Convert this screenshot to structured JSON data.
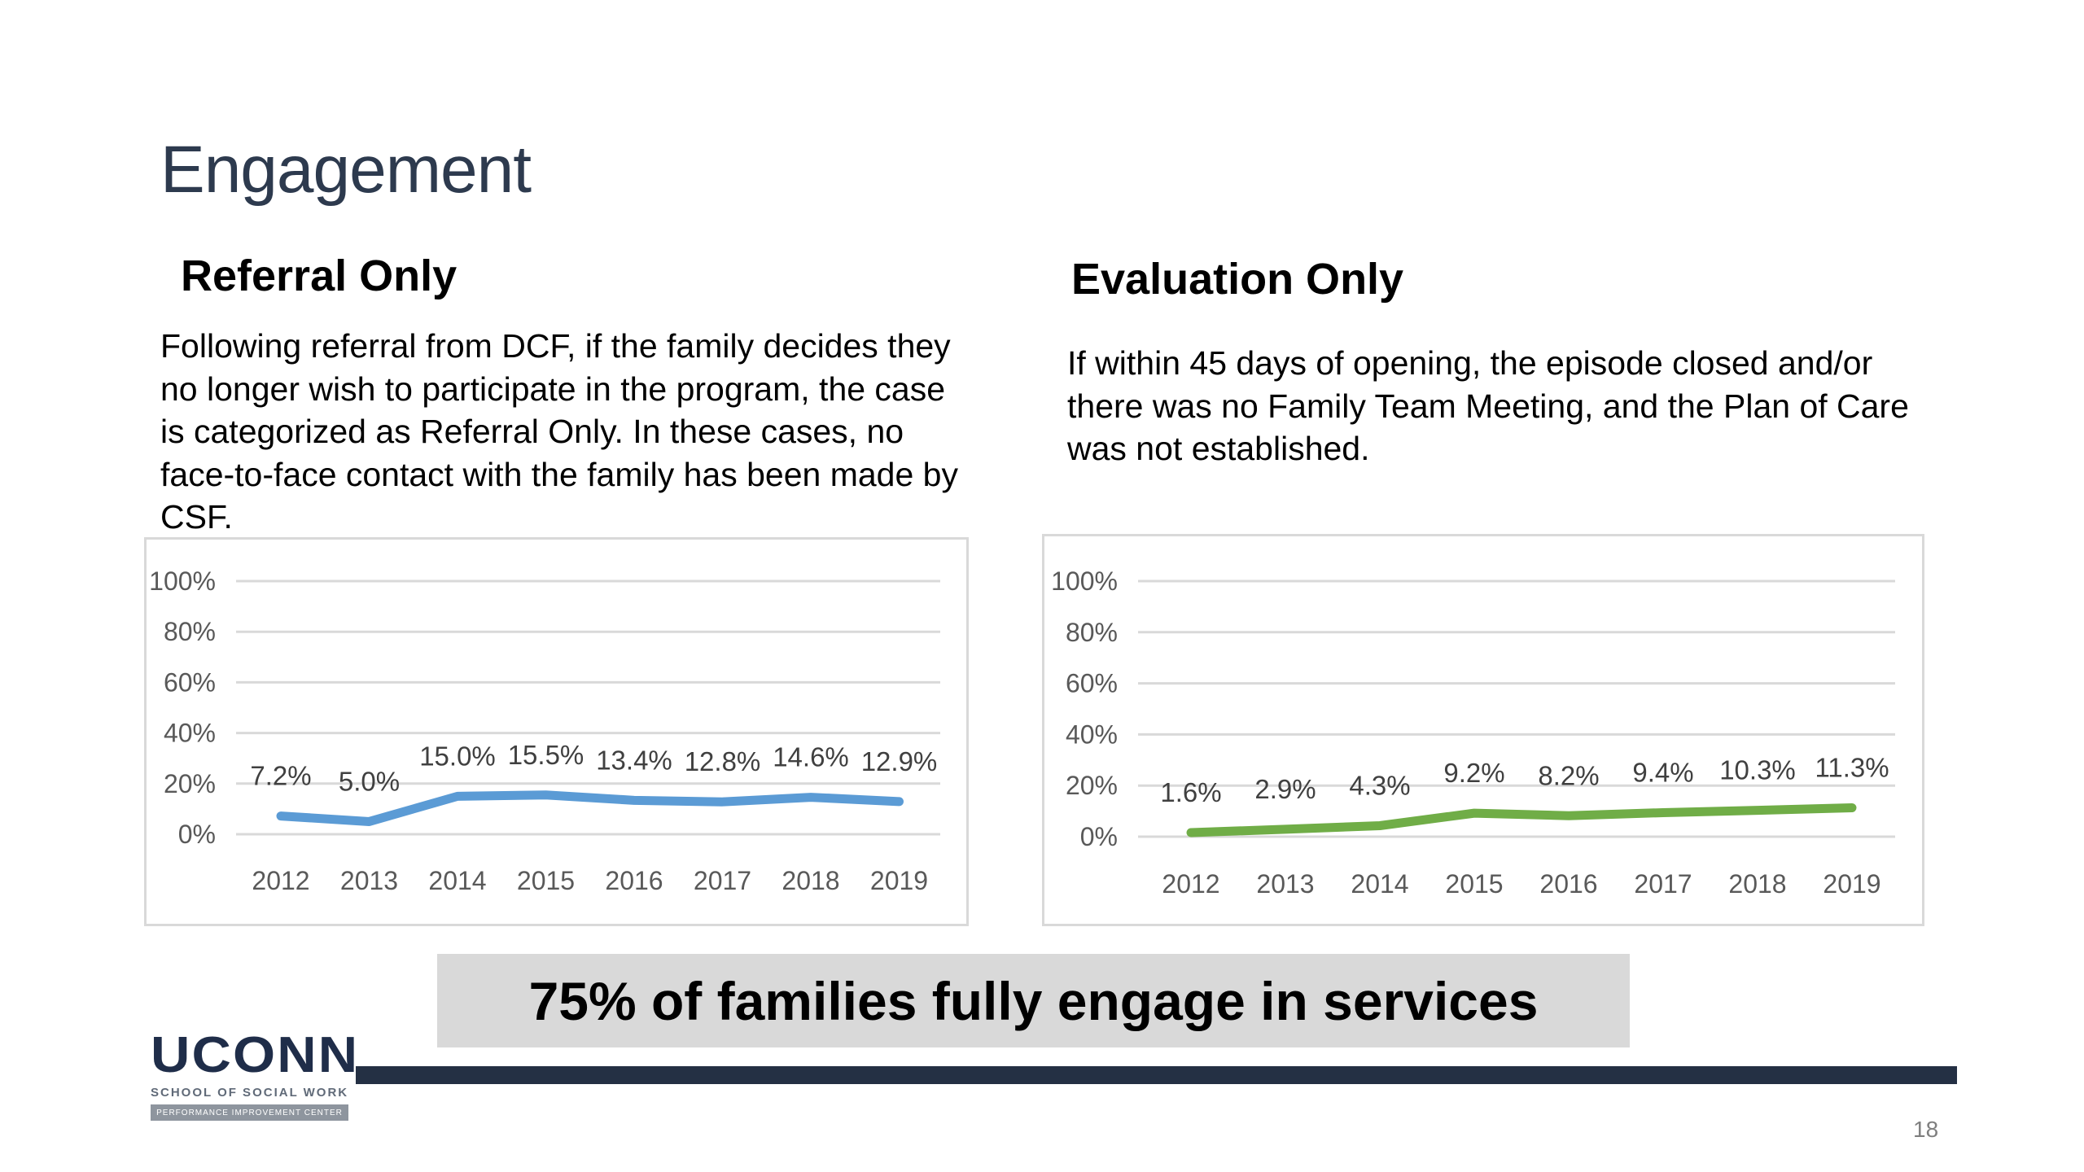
{
  "slide": {
    "title": "Engagement",
    "callout": "75% of families fully engage in services",
    "page_number": "18"
  },
  "logo": {
    "name": "UCONN",
    "school": "SCHOOL OF SOCIAL WORK",
    "center": "PERFORMANCE IMPROVEMENT CENTER"
  },
  "panels": {
    "referral": {
      "heading": "Referral Only",
      "description": "Following referral from DCF, if the family decides they no longer wish to participate in the program, the case is categorized as Referral Only. In these cases, no face-to-face contact with the family has been made by CSF."
    },
    "evaluation": {
      "heading": "Evaluation Only",
      "description": "If within 45 days of opening, the episode closed and/or there was no Family Team Meeting, and the Plan of Care was not established."
    }
  },
  "chart_data": [
    {
      "type": "line",
      "categories": [
        "2012",
        "2013",
        "2014",
        "2015",
        "2016",
        "2017",
        "2018",
        "2019"
      ],
      "series": [
        {
          "values": [
            7.2,
            5.0,
            15.0,
            15.5,
            13.4,
            12.8,
            14.6,
            12.9
          ],
          "labels": [
            "7.2%",
            "5.0%",
            "15.0%",
            "15.5%",
            "13.4%",
            "12.8%",
            "14.6%",
            "12.9%"
          ],
          "color": "#5b9bd5"
        }
      ],
      "yticks": [
        "0%",
        "20%",
        "40%",
        "60%",
        "80%",
        "100%"
      ],
      "ylim": [
        0,
        100
      ],
      "grid": true,
      "legend": "none"
    },
    {
      "type": "line",
      "categories": [
        "2012",
        "2013",
        "2014",
        "2015",
        "2016",
        "2017",
        "2018",
        "2019"
      ],
      "series": [
        {
          "values": [
            1.6,
            2.9,
            4.3,
            9.2,
            8.2,
            9.4,
            10.3,
            11.3
          ],
          "labels": [
            "1.6%",
            "2.9%",
            "4.3%",
            "9.2%",
            "8.2%",
            "9.4%",
            "10.3%",
            "11.3%"
          ],
          "color": "#70ad47"
        }
      ],
      "yticks": [
        "0%",
        "20%",
        "40%",
        "60%",
        "80%",
        "100%"
      ],
      "ylim": [
        0,
        100
      ],
      "grid": true,
      "legend": "none"
    }
  ]
}
